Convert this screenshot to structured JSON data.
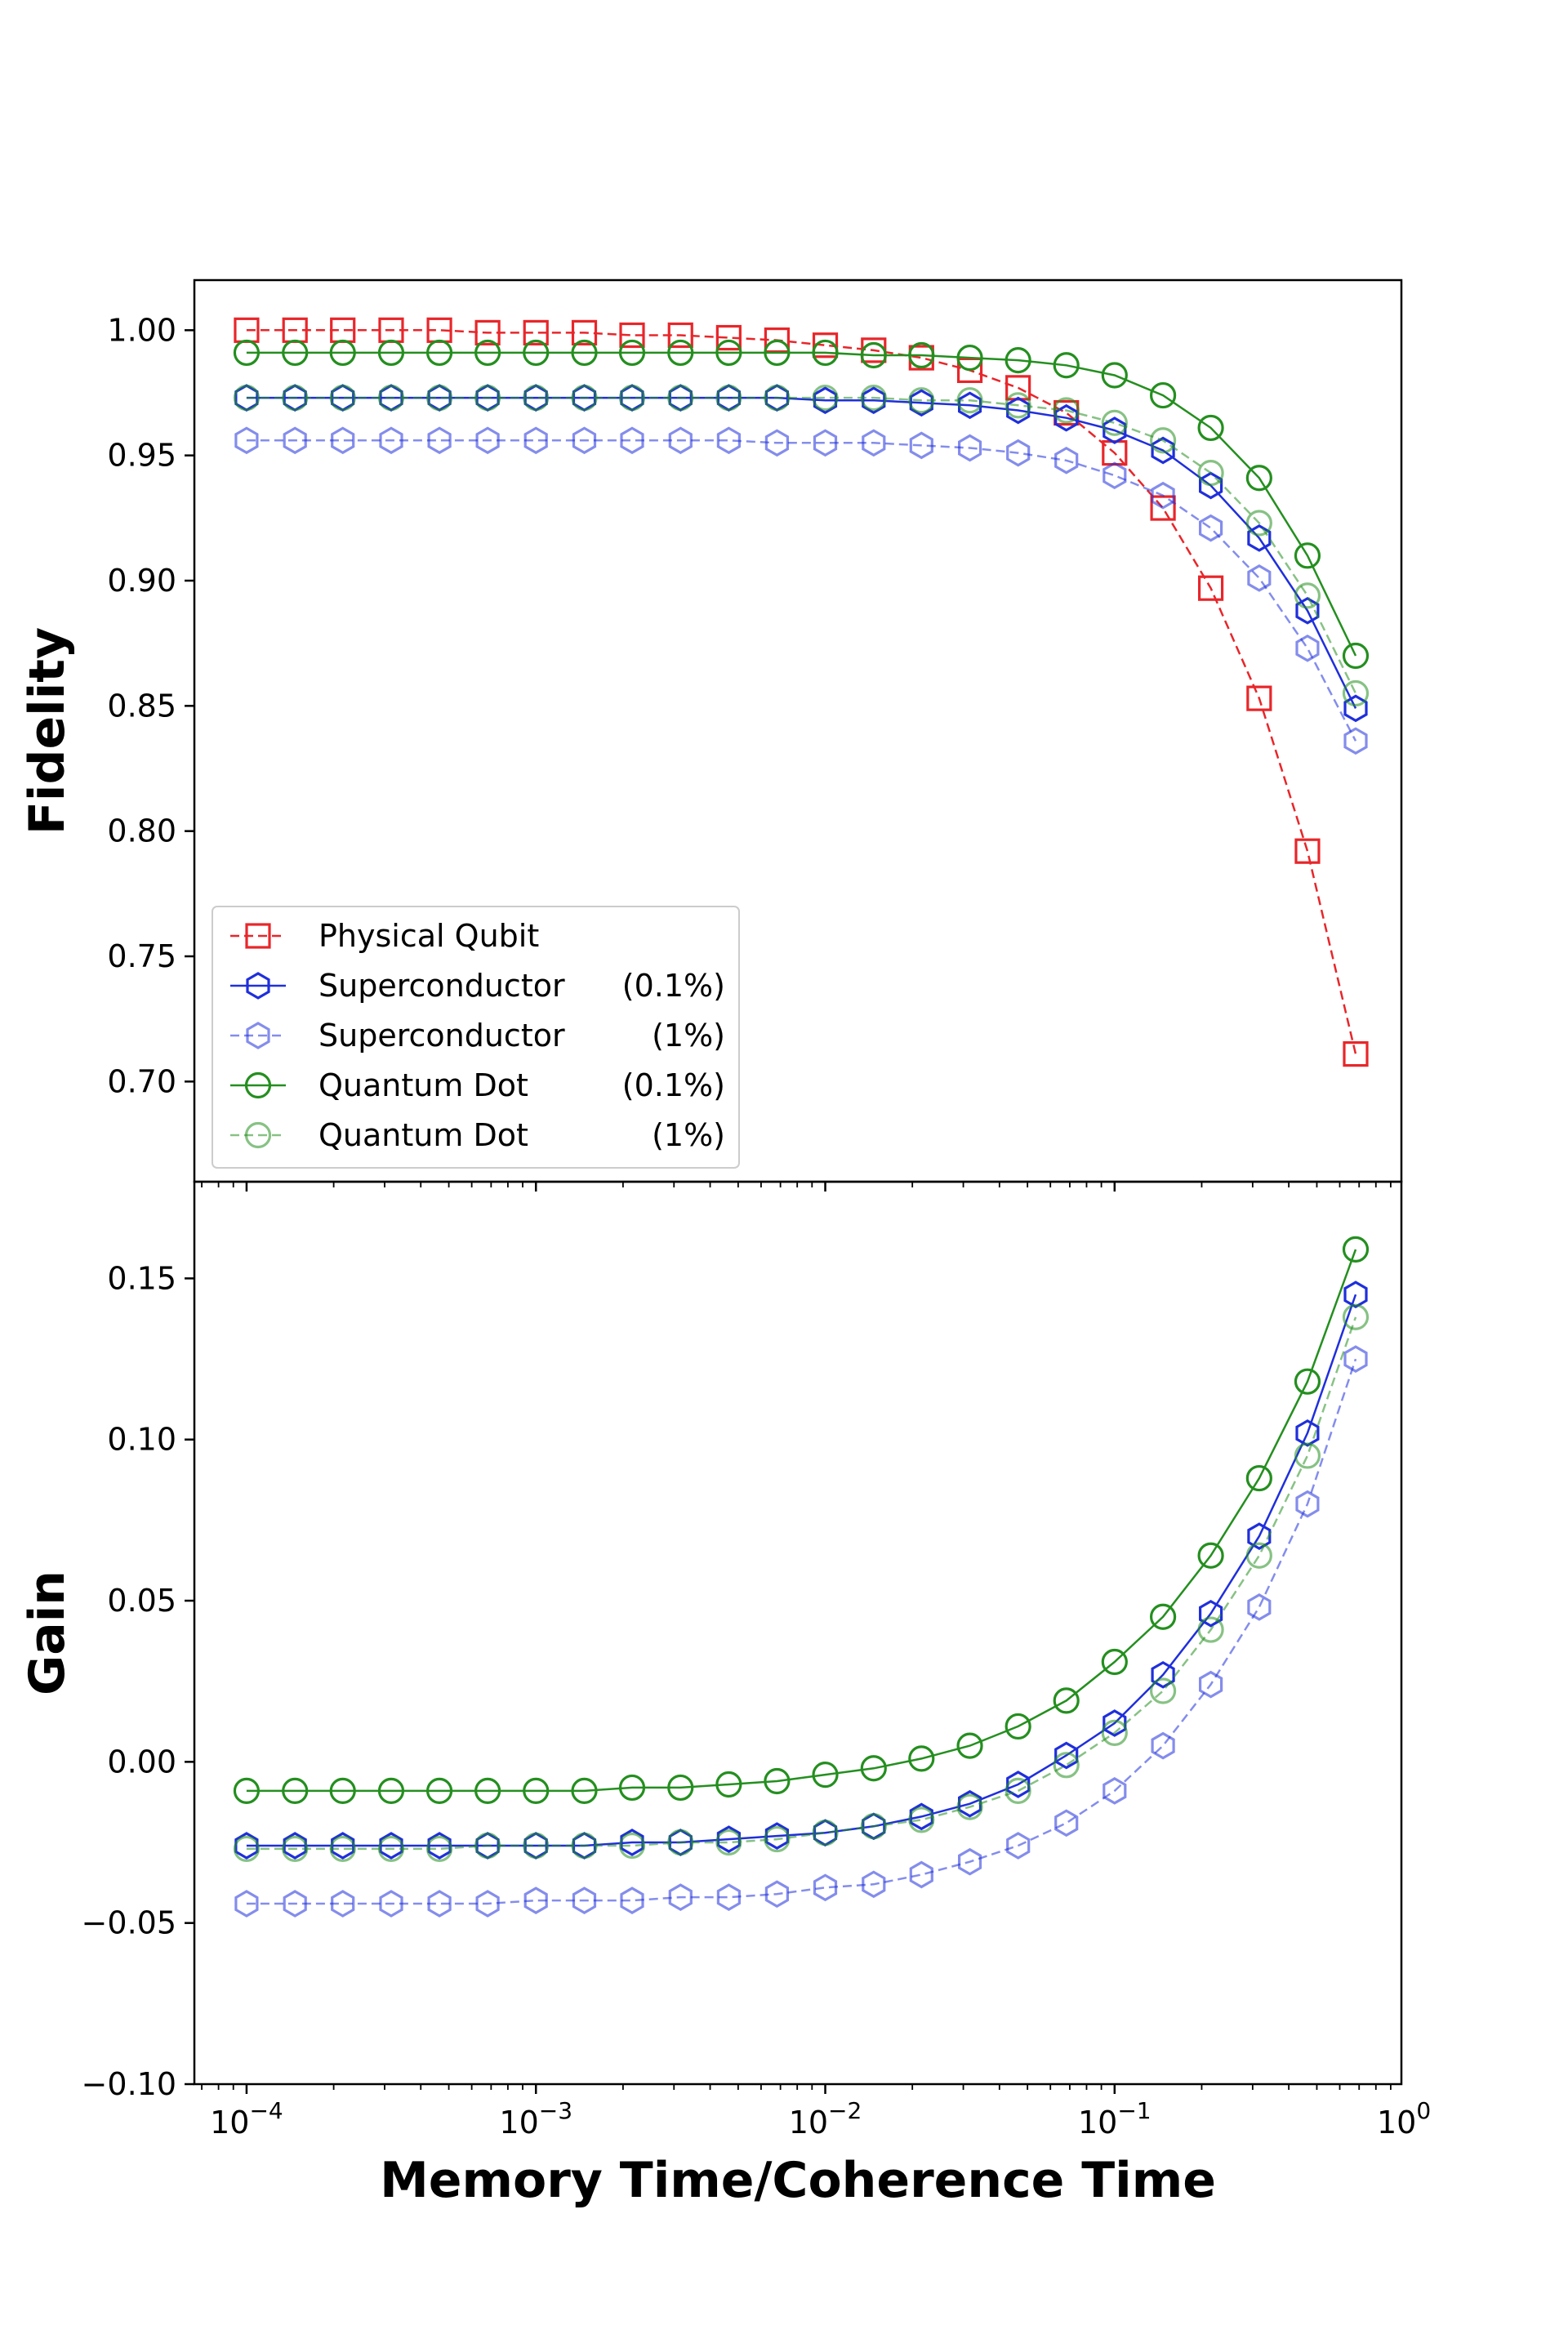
{
  "chart_data": {
    "type": "line",
    "xscale": "log",
    "xlabel": "Memory Time/Coherence Time",
    "xlim": [
      6.6e-05,
      0.98
    ],
    "x_tick_labels": [
      "10^-4",
      "10^-3",
      "10^-2",
      "10^-1",
      "10^0"
    ],
    "x": [
      0.0001,
      0.000147,
      0.000215,
      0.000316,
      0.000464,
      0.000681,
      0.001,
      0.00147,
      0.00215,
      0.00316,
      0.00464,
      0.00681,
      0.01,
      0.0147,
      0.0215,
      0.0316,
      0.0464,
      0.0681,
      0.1,
      0.147,
      0.215,
      0.316,
      0.464,
      0.681
    ],
    "legend": {
      "placement": "lower-left of top panel"
    },
    "colors": {
      "physical": "#e8262a",
      "superconductor": "#1f2fdc",
      "quantum_dot": "#248f1f"
    },
    "panels": [
      {
        "name": "fidelity",
        "ylabel": "Fidelity",
        "ylim": [
          0.66,
          1.02
        ],
        "yticks": [
          "0.70",
          "0.75",
          "0.80",
          "0.85",
          "0.90",
          "0.95",
          "1.00"
        ],
        "series": [
          {
            "name": "Physical Qubit",
            "values": [
              1.0,
              1.0,
              1.0,
              1.0,
              1.0,
              0.999,
              0.999,
              0.999,
              0.998,
              0.998,
              0.997,
              0.996,
              0.994,
              0.992,
              0.989,
              0.984,
              0.977,
              0.967,
              0.951,
              0.929,
              0.897,
              0.853,
              0.792,
              0.711
            ]
          },
          {
            "name": "Superconductor (0.1%)",
            "values": [
              0.973,
              0.973,
              0.973,
              0.973,
              0.973,
              0.973,
              0.973,
              0.973,
              0.973,
              0.973,
              0.973,
              0.973,
              0.972,
              0.972,
              0.971,
              0.97,
              0.968,
              0.965,
              0.96,
              0.952,
              0.938,
              0.917,
              0.888,
              0.849
            ]
          },
          {
            "name": "Superconductor (1%)",
            "values": [
              0.956,
              0.956,
              0.956,
              0.956,
              0.956,
              0.956,
              0.956,
              0.956,
              0.956,
              0.956,
              0.956,
              0.955,
              0.955,
              0.955,
              0.954,
              0.953,
              0.951,
              0.948,
              0.942,
              0.934,
              0.921,
              0.901,
              0.873,
              0.836
            ]
          },
          {
            "name": "Quantum Dot (0.1%)",
            "values": [
              0.991,
              0.991,
              0.991,
              0.991,
              0.991,
              0.991,
              0.991,
              0.991,
              0.991,
              0.991,
              0.991,
              0.991,
              0.991,
              0.99,
              0.99,
              0.989,
              0.988,
              0.986,
              0.982,
              0.974,
              0.961,
              0.941,
              0.91,
              0.87
            ]
          },
          {
            "name": "Quantum Dot (1%)",
            "values": [
              0.973,
              0.973,
              0.973,
              0.973,
              0.973,
              0.973,
              0.973,
              0.973,
              0.973,
              0.973,
              0.973,
              0.973,
              0.973,
              0.973,
              0.972,
              0.972,
              0.97,
              0.968,
              0.963,
              0.956,
              0.943,
              0.923,
              0.894,
              0.855
            ]
          }
        ]
      },
      {
        "name": "gain",
        "ylabel": "Gain",
        "ylim": [
          -0.1,
          0.18
        ],
        "yticks": [
          "−0.10",
          "−0.05",
          "0.00",
          "0.05",
          "0.10",
          "0.15"
        ],
        "series": [
          {
            "name": "Superconductor (0.1%)",
            "values": [
              -0.026,
              -0.026,
              -0.026,
              -0.026,
              -0.026,
              -0.026,
              -0.026,
              -0.026,
              -0.025,
              -0.025,
              -0.024,
              -0.023,
              -0.022,
              -0.02,
              -0.017,
              -0.013,
              -0.007,
              0.002,
              0.012,
              0.027,
              0.046,
              0.07,
              0.102,
              0.145
            ]
          },
          {
            "name": "Superconductor (1%)",
            "values": [
              -0.044,
              -0.044,
              -0.044,
              -0.044,
              -0.044,
              -0.044,
              -0.043,
              -0.043,
              -0.043,
              -0.042,
              -0.042,
              -0.041,
              -0.039,
              -0.038,
              -0.035,
              -0.031,
              -0.026,
              -0.019,
              -0.009,
              0.005,
              0.024,
              0.048,
              0.08,
              0.125
            ]
          },
          {
            "name": "Quantum Dot (0.1%)",
            "values": [
              -0.009,
              -0.009,
              -0.009,
              -0.009,
              -0.009,
              -0.009,
              -0.009,
              -0.009,
              -0.008,
              -0.008,
              -0.007,
              -0.006,
              -0.004,
              -0.002,
              0.001,
              0.005,
              0.011,
              0.019,
              0.031,
              0.045,
              0.064,
              0.088,
              0.118,
              0.159
            ]
          },
          {
            "name": "Quantum Dot (1%)",
            "values": [
              -0.027,
              -0.027,
              -0.027,
              -0.027,
              -0.027,
              -0.026,
              -0.026,
              -0.026,
              -0.026,
              -0.025,
              -0.025,
              -0.024,
              -0.022,
              -0.02,
              -0.018,
              -0.014,
              -0.009,
              -0.001,
              0.009,
              0.022,
              0.041,
              0.064,
              0.095,
              0.138
            ]
          }
        ]
      }
    ],
    "legend_entries": [
      {
        "label": "Physical Qubit",
        "spacer": "",
        "pct": ""
      },
      {
        "label": "Superconductor",
        "spacer": "",
        "pct": "(0.1%)"
      },
      {
        "label": "Superconductor",
        "spacer": "",
        "pct": "(1%)"
      },
      {
        "label": "Quantum Dot",
        "spacer": "",
        "pct": "(0.1%)"
      },
      {
        "label": "Quantum Dot",
        "spacer": "",
        "pct": "(1%)"
      }
    ]
  }
}
